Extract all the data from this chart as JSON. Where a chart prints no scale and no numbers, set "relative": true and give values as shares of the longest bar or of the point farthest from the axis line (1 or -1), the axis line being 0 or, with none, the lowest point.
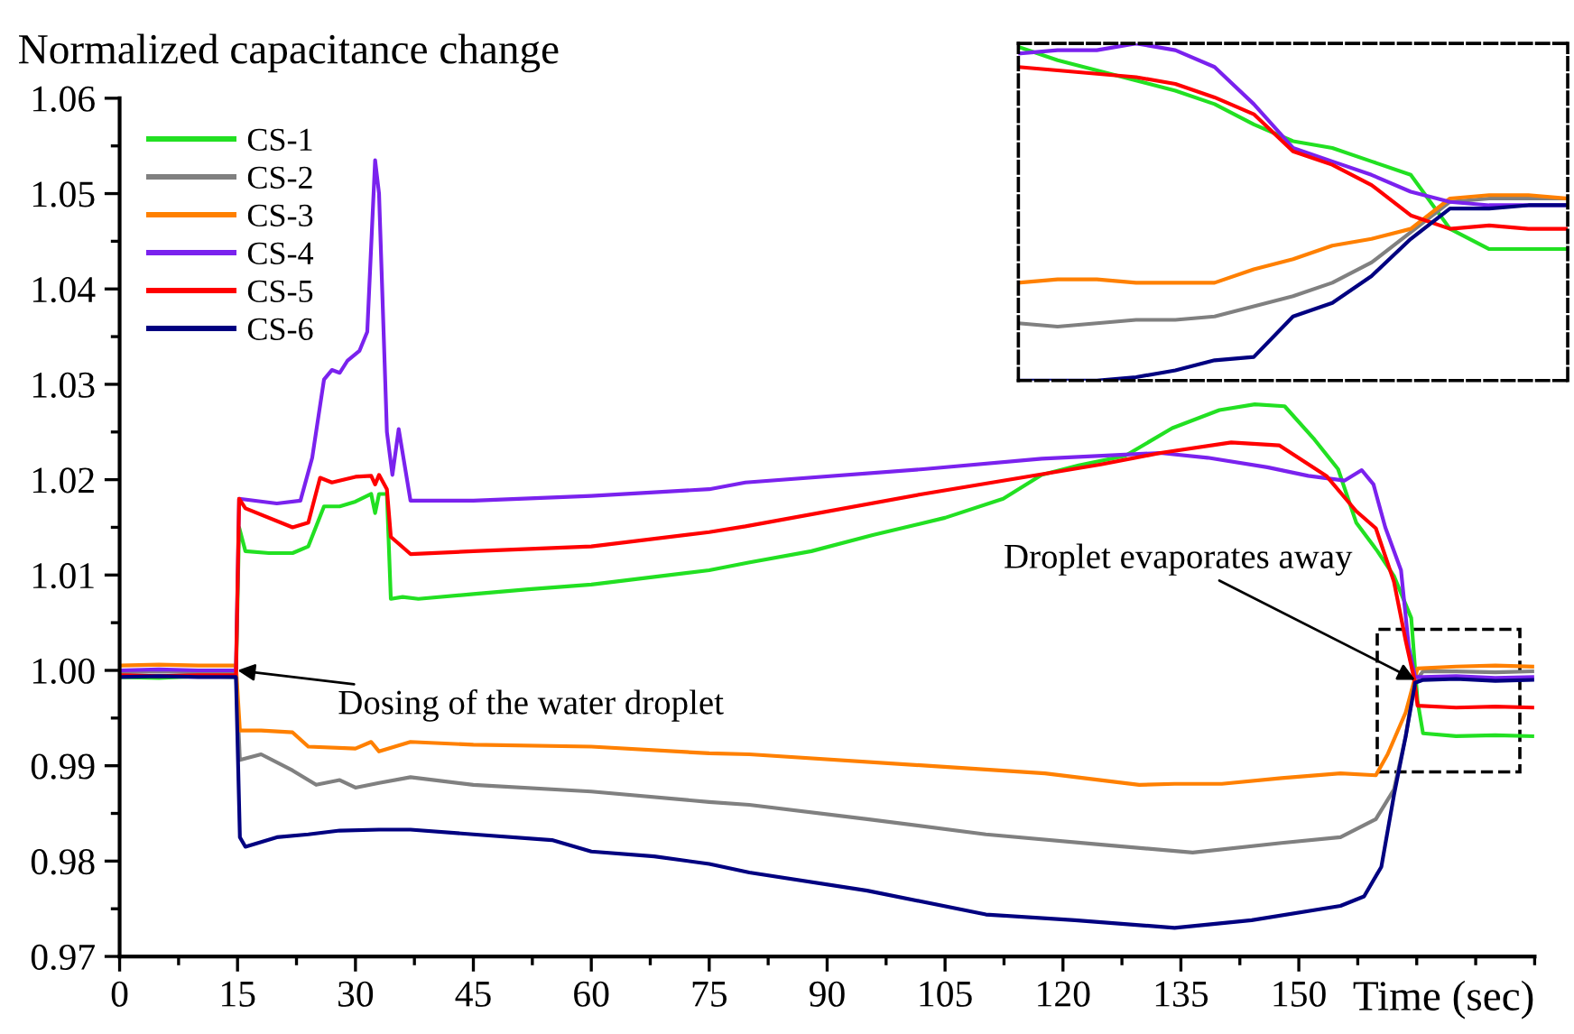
{
  "chart_data": [
    {
      "type": "line",
      "ylabel": "Normalized capacitance change",
      "xlabel": "Time (sec)",
      "xlim": [
        0,
        180
      ],
      "ylim": [
        0.97,
        1.06
      ],
      "xticks": [
        0,
        {
          "value": 7.5,
          "label": null
        },
        15,
        {
          "value": 22.5,
          "label": null
        },
        30,
        {
          "value": 37.5,
          "label": null
        },
        45,
        {
          "value": 52.5,
          "label": null
        },
        60,
        {
          "value": 67.5,
          "label": null
        },
        75,
        {
          "value": 82.5,
          "label": null
        },
        90,
        {
          "value": 97.5,
          "label": null
        },
        105,
        {
          "value": 112.5,
          "label": null
        },
        120,
        {
          "value": 127.5,
          "label": null
        },
        135,
        {
          "value": 142.5,
          "label": null
        },
        150,
        {
          "value": 157.5,
          "label": null
        },
        {
          "value": 165,
          "label": null
        },
        {
          "value": 172.5,
          "label": null
        },
        {
          "value": 180,
          "label": null
        }
      ],
      "yticks": [
        {
          "value": 0.97,
          "label": "0.97"
        },
        {
          "value": 0.975,
          "label": null
        },
        {
          "value": 0.98,
          "label": "0.98"
        },
        {
          "value": 0.985,
          "label": null
        },
        {
          "value": 0.99,
          "label": "0.99"
        },
        {
          "value": 0.995,
          "label": null
        },
        {
          "value": 1.0,
          "label": "1.00"
        },
        {
          "value": 1.005,
          "label": null
        },
        {
          "value": 1.01,
          "label": "1.01"
        },
        {
          "value": 1.015,
          "label": null
        },
        {
          "value": 1.02,
          "label": "1.02"
        },
        {
          "value": 1.025,
          "label": null
        },
        {
          "value": 1.03,
          "label": "1.03"
        },
        {
          "value": 1.035,
          "label": null
        },
        {
          "value": 1.04,
          "label": "1.04"
        },
        {
          "value": 1.045,
          "label": null
        },
        {
          "value": 1.05,
          "label": "1.05"
        },
        {
          "value": 1.055,
          "label": null
        },
        {
          "value": 1.06,
          "label": "1.06"
        }
      ],
      "legend": "top left",
      "grid": false,
      "marker": "none",
      "line_style": "solid",
      "annotations": [
        {
          "text": "Dosing of the water droplet",
          "x": 15,
          "y": 1.0
        },
        {
          "text": "Droplet evaporates away",
          "x": 164.8,
          "y": 0.999
        }
      ],
      "series": [
        {
          "name": "CS-1",
          "color": "#22e022",
          "x": [
            0,
            5,
            10,
            14.8,
            15.2,
            16,
            19,
            22,
            24,
            26,
            28,
            30,
            32,
            32.5,
            33,
            34,
            34.5,
            36,
            38,
            45,
            52,
            60,
            68,
            75,
            80,
            88,
            95.8,
            105,
            112.4,
            117.3,
            122,
            127.9,
            133.9,
            139.9,
            144.4,
            148.2,
            152,
            155,
            157.3,
            160,
            162.1,
            164.3,
            165.1,
            165.8,
            170,
            175,
            179.7
          ],
          "values": [
            0.9993,
            0.9992,
            0.9994,
            0.9993,
            1.015,
            1.0125,
            1.0123,
            1.0123,
            1.013,
            1.0172,
            1.0172,
            1.0177,
            1.0185,
            1.0165,
            1.0185,
            1.0185,
            1.0075,
            1.0077,
            1.0075,
            1.008,
            1.0085,
            1.009,
            1.0098,
            1.0105,
            1.0113,
            1.0125,
            1.0142,
            1.016,
            1.018,
            1.0205,
            1.0215,
            1.0225,
            1.0254,
            1.0273,
            1.0279,
            1.0277,
            1.0242,
            1.0211,
            1.0155,
            1.0125,
            1.0099,
            1.0055,
            0.9968,
            0.9934,
            0.9931,
            0.9932,
            0.9931
          ]
        },
        {
          "name": "CS-2",
          "color": "#808080",
          "x": [
            0,
            5,
            10,
            14.8,
            15.3,
            18,
            22,
            25,
            28,
            30,
            33,
            37,
            45,
            60,
            75,
            80.1,
            95.1,
            110.2,
            125.2,
            136.5,
            147.8,
            155.3,
            159.8,
            162.1,
            163.6,
            164.7,
            165.8,
            170,
            175,
            179.7
          ],
          "values": [
            0.9998,
            0.9999,
            0.9998,
            0.9998,
            0.9906,
            0.9912,
            0.9895,
            0.988,
            0.9885,
            0.9877,
            0.9882,
            0.9888,
            0.988,
            0.9873,
            0.9862,
            0.9859,
            0.9844,
            0.9828,
            0.9817,
            0.9809,
            0.9819,
            0.9825,
            0.9844,
            0.9875,
            0.9931,
            0.9987,
            0.9999,
            0.9999,
            0.9998,
            0.9999
          ]
        },
        {
          "name": "CS-3",
          "color": "#ff8000",
          "x": [
            0,
            5,
            10,
            14.8,
            15.3,
            18,
            22,
            24,
            30,
            32,
            33,
            35,
            37,
            45,
            60,
            75,
            80.1,
            102.7,
            117.7,
            129.7,
            134.2,
            140.2,
            147.8,
            155.3,
            159.8,
            161.3,
            163.6,
            165.1,
            170,
            175,
            179.7
          ],
          "values": [
            1.0005,
            1.0006,
            1.0005,
            1.0005,
            0.9937,
            0.9937,
            0.9935,
            0.992,
            0.9918,
            0.9925,
            0.9915,
            0.992,
            0.9925,
            0.9922,
            0.992,
            0.9913,
            0.9912,
            0.99,
            0.9892,
            0.988,
            0.9881,
            0.9881,
            0.9887,
            0.9892,
            0.989,
            0.9912,
            0.9956,
            1.0002,
            1.0004,
            1.0005,
            1.0004
          ]
        },
        {
          "name": "CS-4",
          "color": "#7a22ee",
          "x": [
            0,
            5,
            10,
            14.8,
            15.2,
            20,
            23,
            24.5,
            26,
            27,
            28,
            29,
            30.5,
            31.5,
            32.5,
            33,
            34,
            34.7,
            35.5,
            37,
            45,
            60,
            75,
            79.6,
            102.2,
            117.3,
            132.4,
            138.4,
            146,
            151.2,
            155.8,
            158,
            159.5,
            161,
            163,
            164,
            164.8,
            165.8,
            170,
            175,
            179.7
          ],
          "values": [
            1.0,
            1.0001,
            1.0,
            1.0,
            1.018,
            1.0175,
            1.0178,
            1.0223,
            1.0305,
            1.0315,
            1.0312,
            1.0325,
            1.0335,
            1.0355,
            1.0535,
            1.05,
            1.025,
            1.0205,
            1.0253,
            1.0178,
            1.0178,
            1.0183,
            1.019,
            1.0197,
            1.0211,
            1.0222,
            1.0228,
            1.0223,
            1.0213,
            1.0204,
            1.0199,
            1.021,
            1.0195,
            1.015,
            1.0105,
            1.0024,
            0.9993,
            0.9993,
            0.9994,
            0.9992,
            0.9993
          ]
        },
        {
          "name": "CS-5",
          "color": "#ff0000",
          "x": [
            0,
            5,
            10,
            14.8,
            15.2,
            16,
            22,
            24,
            25.5,
            27,
            30,
            32,
            32.5,
            33,
            34,
            34.5,
            37,
            45,
            60,
            75,
            79.6,
            102.2,
            124.8,
            132.4,
            141.4,
            147.5,
            153.5,
            157.3,
            159.8,
            162.1,
            163.6,
            164.7,
            165.1,
            170,
            175,
            179.7
          ],
          "values": [
            0.9995,
            0.9994,
            0.9995,
            0.9995,
            1.018,
            1.017,
            1.015,
            1.0155,
            1.0202,
            1.0197,
            1.0203,
            1.0204,
            1.0195,
            1.0205,
            1.019,
            1.014,
            1.0122,
            1.0125,
            1.013,
            1.0145,
            1.0151,
            1.0185,
            1.0216,
            1.0228,
            1.0239,
            1.0236,
            1.0204,
            1.0167,
            1.0149,
            1.0093,
            1.0031,
            0.999,
            0.9963,
            0.9961,
            0.9962,
            0.9961
          ]
        },
        {
          "name": "CS-6",
          "color": "#000080",
          "x": [
            0,
            5,
            10,
            14.8,
            15.3,
            16,
            20,
            24,
            28,
            33,
            37,
            45,
            55,
            60,
            68,
            75,
            80.1,
            95.1,
            110.2,
            121.5,
            134.2,
            144,
            155.3,
            158.3,
            160.5,
            162.1,
            163.6,
            164.8,
            165.8,
            170,
            175,
            179.7
          ],
          "values": [
            0.9993,
            0.9994,
            0.9993,
            0.9993,
            0.9825,
            0.9815,
            0.9825,
            0.9828,
            0.9832,
            0.9833,
            0.9833,
            0.9828,
            0.9822,
            0.981,
            0.9805,
            0.9797,
            0.9788,
            0.9769,
            0.9744,
            0.9738,
            0.973,
            0.9738,
            0.9753,
            0.9763,
            0.9794,
            0.9869,
            0.9931,
            0.9987,
            0.999,
            0.9991,
            0.9989,
            0.999
          ]
        }
      ]
    },
    {
      "type": "line",
      "relative": true,
      "line_style": "solid",
      "marker": "none",
      "categories": [
        null,
        null,
        null,
        null,
        null,
        null,
        null,
        null,
        null,
        null,
        null,
        null,
        null,
        null,
        null
      ],
      "series": [
        {
          "color": "#22e022",
          "values": [
            0.99,
            0.95,
            0.92,
            0.89,
            0.86,
            0.82,
            0.76,
            0.71,
            0.69,
            0.65,
            0.61,
            0.45,
            0.39,
            0.39,
            0.39
          ]
        },
        {
          "color": "#808080",
          "values": [
            0.17,
            0.16,
            0.17,
            0.18,
            0.18,
            0.19,
            0.22,
            0.25,
            0.29,
            0.35,
            0.44,
            0.53,
            0.54,
            0.54,
            0.54
          ]
        },
        {
          "color": "#ff8000",
          "values": [
            0.29,
            0.3,
            0.3,
            0.29,
            0.29,
            0.29,
            0.33,
            0.36,
            0.4,
            0.42,
            0.45,
            0.54,
            0.55,
            0.55,
            0.54
          ]
        },
        {
          "color": "#7a22ee",
          "values": [
            0.97,
            0.98,
            0.98,
            1.0,
            0.98,
            0.93,
            0.82,
            0.69,
            0.65,
            0.61,
            0.56,
            0.53,
            0.52,
            0.52,
            0.52
          ]
        },
        {
          "color": "#ff0000",
          "values": [
            0.93,
            0.92,
            0.91,
            0.9,
            0.88,
            0.84,
            0.79,
            0.68,
            0.64,
            0.58,
            0.49,
            0.45,
            0.46,
            0.45,
            0.45
          ]
        },
        {
          "color": "#000080",
          "values": [
            0,
            0.0,
            0.0,
            0.01,
            0.03,
            0.06,
            0.07,
            0.19,
            0.23,
            0.31,
            0.42,
            0.51,
            0.51,
            0.52,
            0.52
          ]
        }
      ]
    }
  ]
}
